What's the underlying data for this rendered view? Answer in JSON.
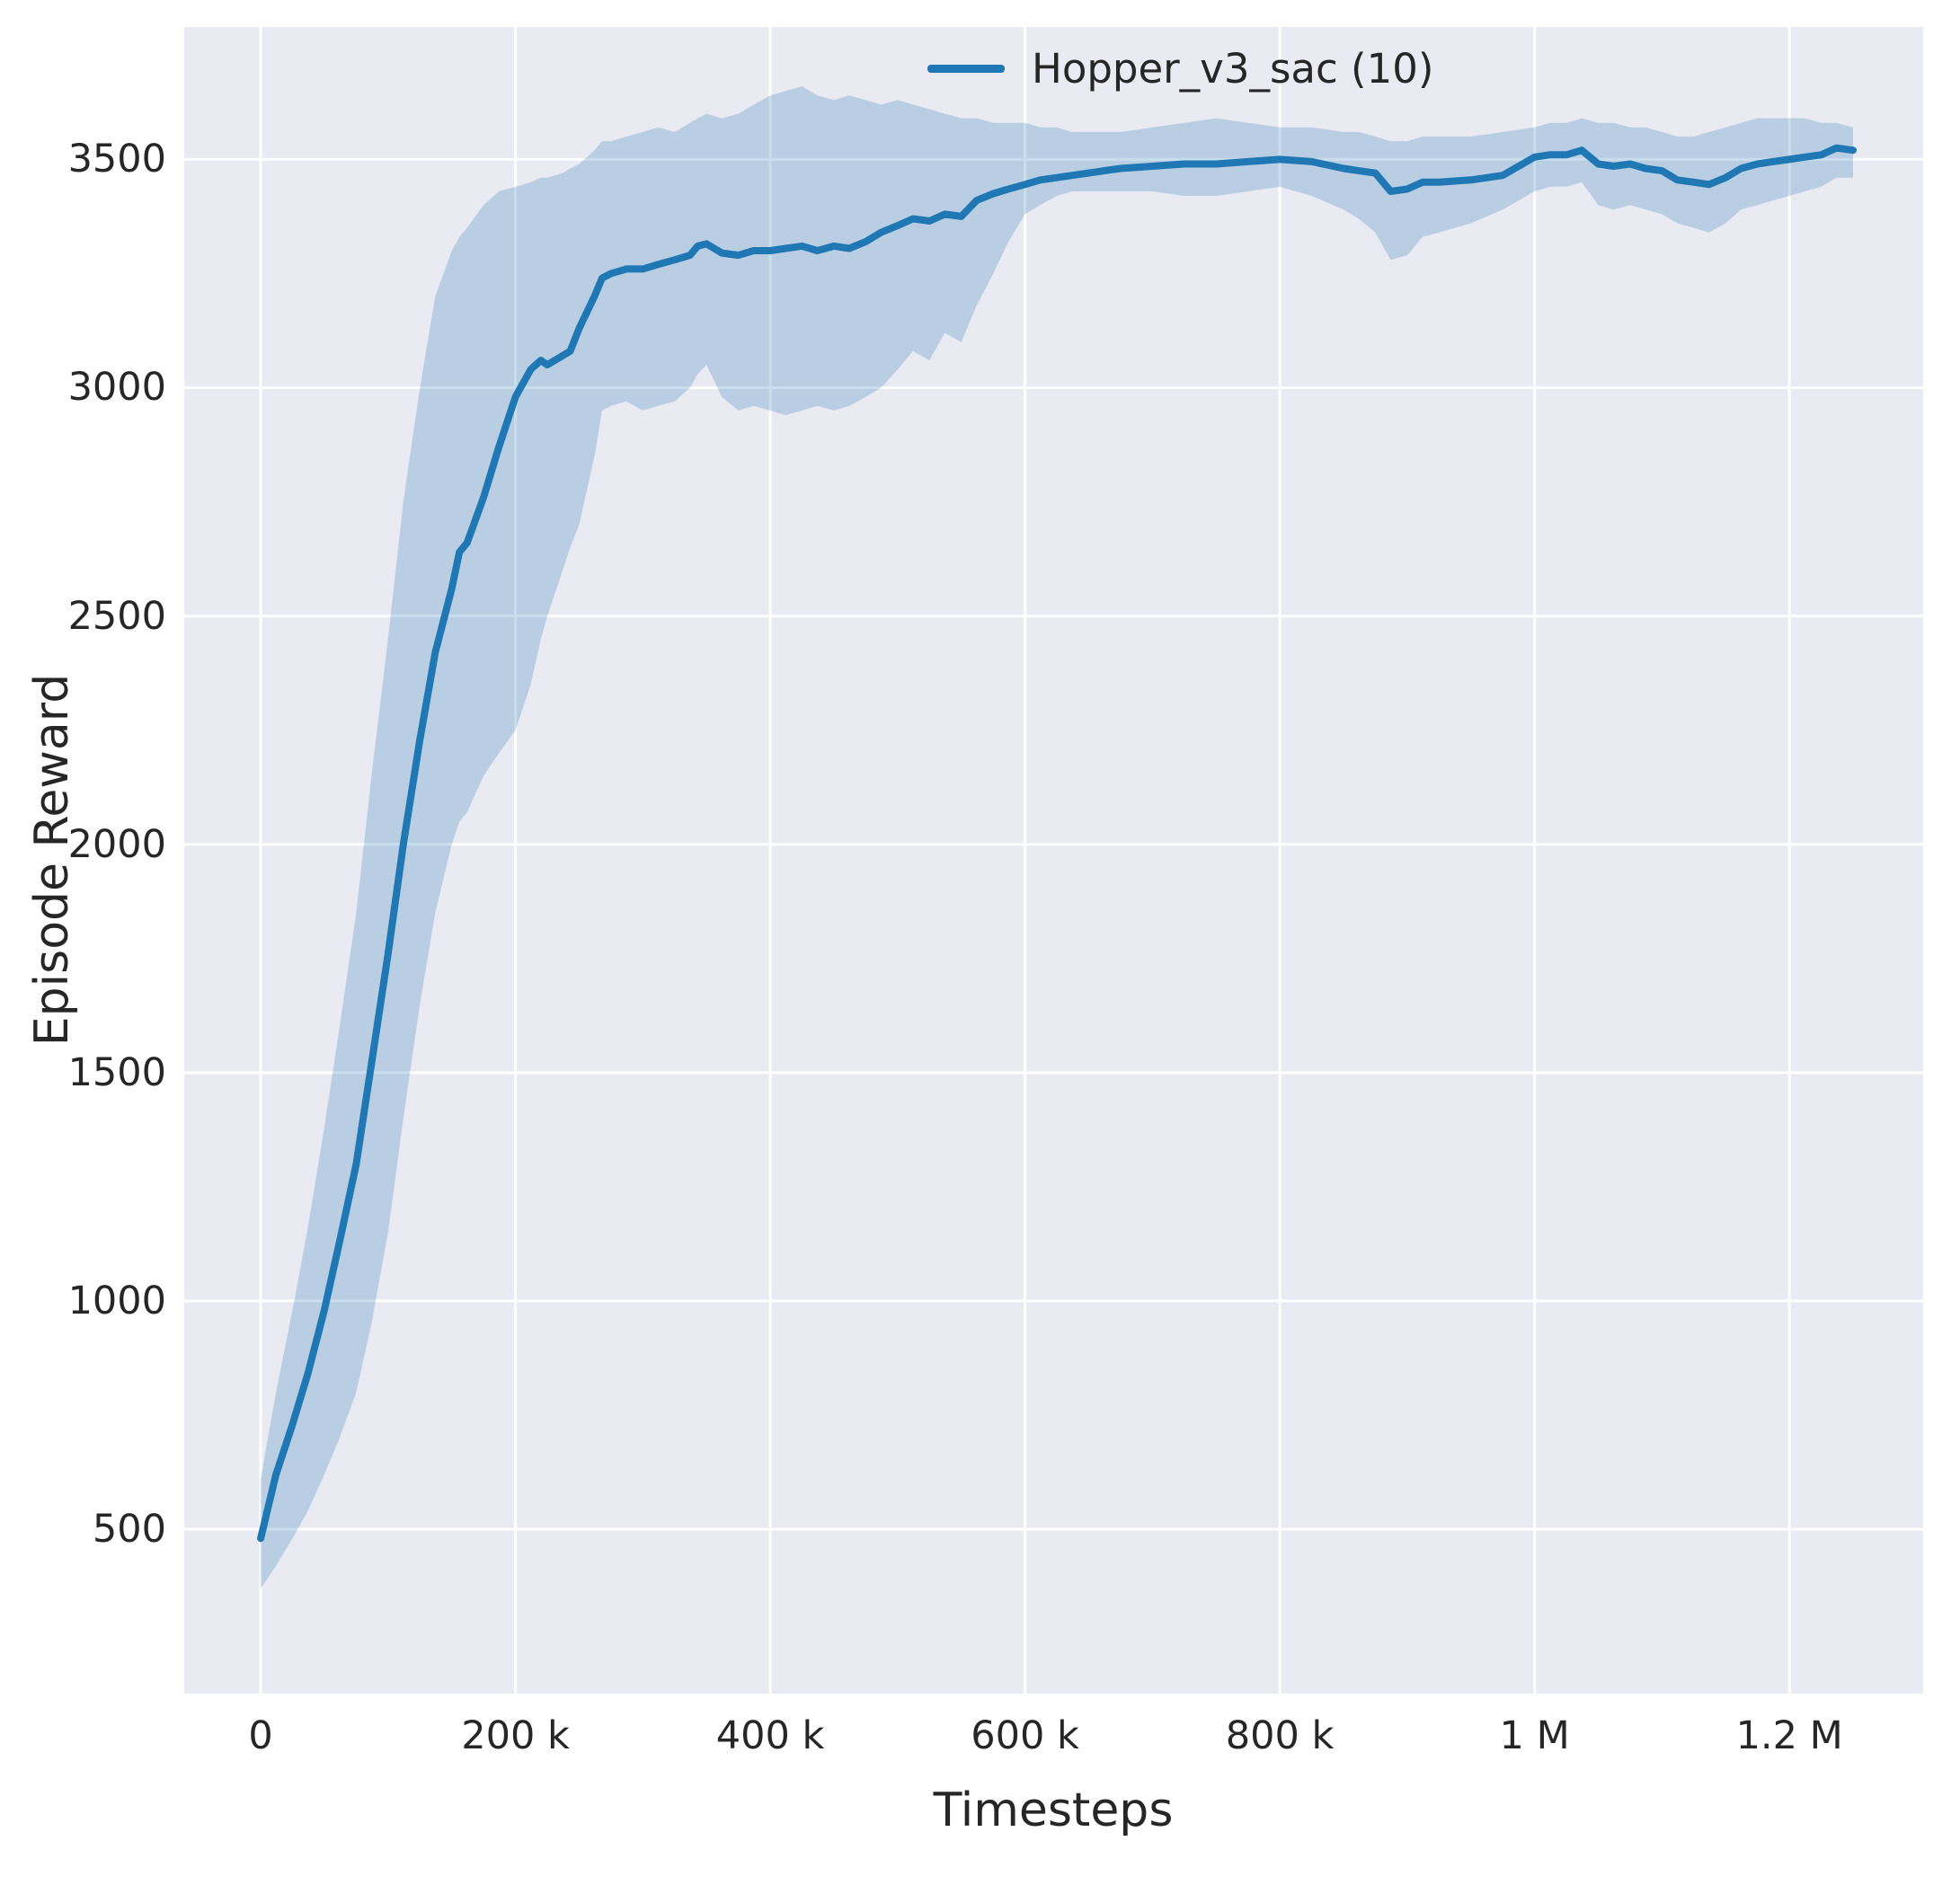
{
  "figure": {
    "background": "#ffffff",
    "axes_background": "#eaeaf2",
    "grid_color": "#ffffff",
    "text_color": "#262626"
  },
  "chart_data": {
    "type": "line",
    "title": "",
    "xlabel": "Timesteps",
    "ylabel": "Episode Reward",
    "grid": true,
    "legend_position": "upper-right-inside",
    "xlim": [
      -60000,
      1305000
    ],
    "ylim": [
      140,
      3790
    ],
    "x_ticks": [
      {
        "value": 0,
        "label": "0"
      },
      {
        "value": 200000,
        "label": "200 k"
      },
      {
        "value": 400000,
        "label": "400 k"
      },
      {
        "value": 600000,
        "label": "600 k"
      },
      {
        "value": 800000,
        "label": "800 k"
      },
      {
        "value": 1000000,
        "label": "1 M"
      },
      {
        "value": 1200000,
        "label": "1.2 M"
      }
    ],
    "y_ticks": [
      {
        "value": 500,
        "label": "500"
      },
      {
        "value": 1000,
        "label": "1000"
      },
      {
        "value": 1500,
        "label": "1500"
      },
      {
        "value": 2000,
        "label": "2000"
      },
      {
        "value": 2500,
        "label": "2500"
      },
      {
        "value": 3000,
        "label": "3000"
      },
      {
        "value": 3500,
        "label": "3500"
      }
    ],
    "series": [
      {
        "name": "Hopper_v3_sac (10)",
        "color": "#1f77b4",
        "band_color": "#1f77b4",
        "band_opacity": 0.24,
        "x": [
          0,
          12000,
          25000,
          37000,
          50000,
          62000,
          75000,
          87000,
          100000,
          112000,
          125000,
          137000,
          150000,
          156000,
          162000,
          175000,
          187000,
          200000,
          212000,
          220000,
          225000,
          237000,
          243000,
          250000,
          262000,
          268000,
          275000,
          287000,
          300000,
          312000,
          325000,
          337000,
          343000,
          350000,
          362000,
          375000,
          387000,
          400000,
          412000,
          425000,
          437000,
          450000,
          462000,
          475000,
          487000,
          500000,
          512000,
          525000,
          537000,
          550000,
          562000,
          575000,
          587000,
          600000,
          612000,
          625000,
          637000,
          650000,
          662000,
          675000,
          700000,
          725000,
          750000,
          775000,
          800000,
          825000,
          850000,
          862000,
          875000,
          887000,
          900000,
          912000,
          925000,
          950000,
          975000,
          1000000,
          1012000,
          1025000,
          1037000,
          1050000,
          1062000,
          1075000,
          1087000,
          1100000,
          1112000,
          1125000,
          1137000,
          1150000,
          1162000,
          1175000,
          1187000,
          1200000,
          1212000,
          1225000,
          1237000,
          1250000
        ],
        "mean": [
          480,
          620,
          730,
          840,
          980,
          1130,
          1300,
          1520,
          1760,
          2000,
          2230,
          2420,
          2560,
          2640,
          2660,
          2760,
          2870,
          2980,
          3040,
          3060,
          3050,
          3070,
          3080,
          3130,
          3200,
          3240,
          3250,
          3260,
          3260,
          3270,
          3280,
          3290,
          3310,
          3315,
          3295,
          3290,
          3300,
          3300,
          3305,
          3310,
          3300,
          3310,
          3305,
          3320,
          3340,
          3355,
          3370,
          3365,
          3380,
          3375,
          3410,
          3425,
          3435,
          3445,
          3455,
          3460,
          3465,
          3470,
          3475,
          3480,
          3485,
          3490,
          3490,
          3495,
          3500,
          3495,
          3480,
          3475,
          3470,
          3430,
          3435,
          3450,
          3450,
          3455,
          3465,
          3505,
          3510,
          3510,
          3520,
          3490,
          3485,
          3490,
          3480,
          3475,
          3455,
          3450,
          3445,
          3460,
          3480,
          3490,
          3495,
          3500,
          3505,
          3510,
          3525,
          3520
        ],
        "lower": [
          370,
          420,
          480,
          540,
          620,
          700,
          800,
          950,
          1150,
          1400,
          1650,
          1850,
          2000,
          2050,
          2070,
          2150,
          2200,
          2250,
          2350,
          2450,
          2500,
          2600,
          2650,
          2700,
          2850,
          2950,
          2960,
          2970,
          2950,
          2960,
          2970,
          3000,
          3030,
          3050,
          2980,
          2950,
          2960,
          2950,
          2940,
          2950,
          2960,
          2950,
          2960,
          2980,
          3000,
          3040,
          3080,
          3060,
          3120,
          3100,
          3180,
          3250,
          3320,
          3380,
          3400,
          3420,
          3430,
          3430,
          3430,
          3430,
          3430,
          3420,
          3420,
          3430,
          3440,
          3420,
          3390,
          3370,
          3340,
          3280,
          3290,
          3330,
          3340,
          3360,
          3390,
          3430,
          3440,
          3440,
          3450,
          3400,
          3390,
          3400,
          3390,
          3380,
          3360,
          3350,
          3340,
          3360,
          3390,
          3400,
          3410,
          3420,
          3430,
          3440,
          3460,
          3460
        ],
        "upper": [
          610,
          800,
          980,
          1160,
          1380,
          1600,
          1850,
          2150,
          2450,
          2750,
          3000,
          3200,
          3300,
          3330,
          3350,
          3400,
          3430,
          3440,
          3450,
          3460,
          3460,
          3470,
          3480,
          3490,
          3520,
          3540,
          3540,
          3550,
          3560,
          3570,
          3560,
          3580,
          3590,
          3600,
          3590,
          3600,
          3620,
          3640,
          3650,
          3660,
          3640,
          3630,
          3640,
          3630,
          3620,
          3630,
          3620,
          3610,
          3600,
          3590,
          3590,
          3580,
          3580,
          3580,
          3570,
          3570,
          3560,
          3560,
          3560,
          3560,
          3570,
          3580,
          3590,
          3580,
          3570,
          3570,
          3560,
          3560,
          3550,
          3540,
          3540,
          3550,
          3550,
          3550,
          3560,
          3570,
          3580,
          3580,
          3590,
          3580,
          3580,
          3570,
          3570,
          3560,
          3550,
          3550,
          3560,
          3570,
          3580,
          3590,
          3590,
          3590,
          3590,
          3580,
          3580,
          3570
        ]
      }
    ]
  }
}
